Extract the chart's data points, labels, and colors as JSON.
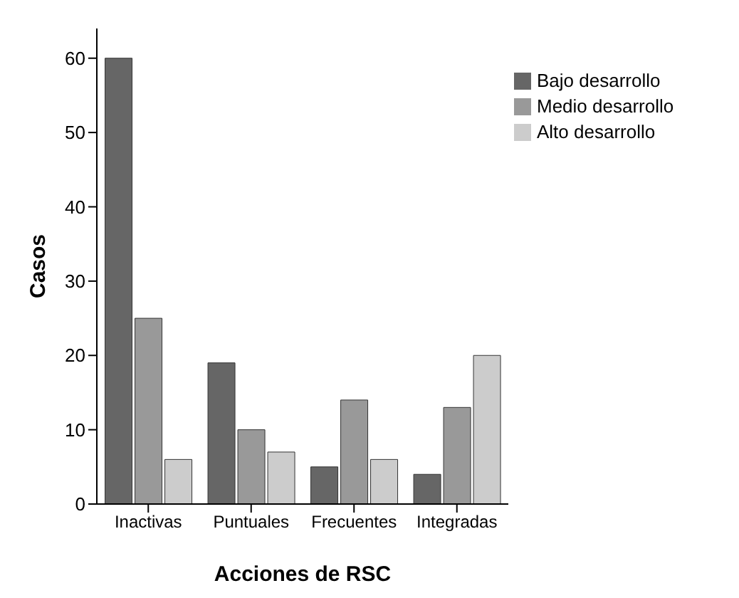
{
  "chart_data": {
    "type": "bar",
    "xlabel": "Acciones de RSC",
    "ylabel": "Casos",
    "categories": [
      "Inactivas",
      "Puntuales",
      "Frecuentes",
      "Integradas"
    ],
    "series": [
      {
        "name": "Bajo desarrollo",
        "color": "#666666",
        "values": [
          60,
          19,
          5,
          4
        ]
      },
      {
        "name": "Medio desarrollo",
        "color": "#999999",
        "values": [
          25,
          10,
          14,
          13
        ]
      },
      {
        "name": "Alto desarrollo",
        "color": "#cccccc",
        "values": [
          6,
          7,
          6,
          20
        ]
      }
    ],
    "ylim": [
      0,
      64
    ],
    "yticks": [
      0,
      10,
      20,
      30,
      40,
      50,
      60
    ],
    "grid": false,
    "legend": "top right"
  }
}
